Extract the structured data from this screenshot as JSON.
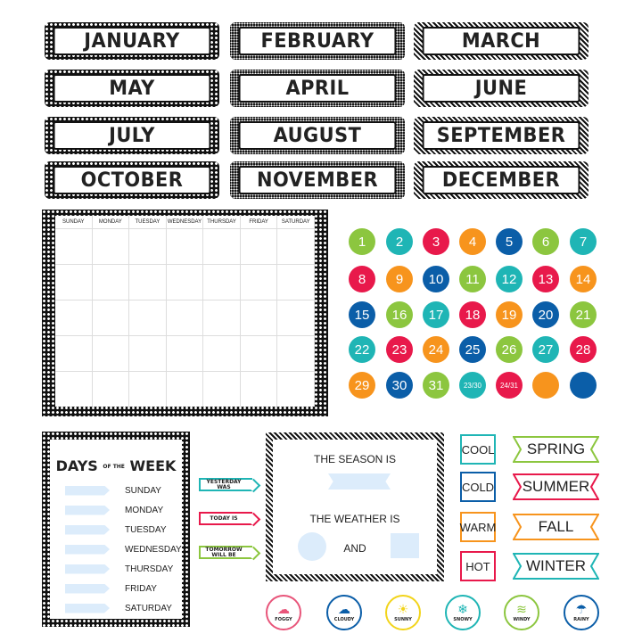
{
  "months": [
    "JANUARY",
    "FEBRUARY",
    "MARCH",
    "MAY",
    "APRIL",
    "JUNE",
    "JULY",
    "AUGUST",
    "SEPTEMBER",
    "OCTOBER",
    "NOVEMBER",
    "DECEMBER"
  ],
  "calendar": {
    "headers": [
      "SUNDAY",
      "MONDAY",
      "TUESDAY",
      "WEDNESDAY",
      "THURSDAY",
      "FRIDAY",
      "SATURDAY"
    ]
  },
  "colors": {
    "green": "#8cc63f",
    "teal": "#1fb5b5",
    "red": "#e8194b",
    "orange": "#f7941d",
    "blue": "#0b5ea8"
  },
  "numbers": [
    {
      "label": "1",
      "color": "green"
    },
    {
      "label": "2",
      "color": "teal"
    },
    {
      "label": "3",
      "color": "red"
    },
    {
      "label": "4",
      "color": "orange"
    },
    {
      "label": "5",
      "color": "blue"
    },
    {
      "label": "6",
      "color": "green"
    },
    {
      "label": "7",
      "color": "teal"
    },
    {
      "label": "8",
      "color": "red"
    },
    {
      "label": "9",
      "color": "orange"
    },
    {
      "label": "10",
      "color": "blue"
    },
    {
      "label": "11",
      "color": "green"
    },
    {
      "label": "12",
      "color": "teal"
    },
    {
      "label": "13",
      "color": "red"
    },
    {
      "label": "14",
      "color": "orange"
    },
    {
      "label": "15",
      "color": "blue"
    },
    {
      "label": "16",
      "color": "green"
    },
    {
      "label": "17",
      "color": "teal"
    },
    {
      "label": "18",
      "color": "red"
    },
    {
      "label": "19",
      "color": "orange"
    },
    {
      "label": "20",
      "color": "blue"
    },
    {
      "label": "21",
      "color": "green"
    },
    {
      "label": "22",
      "color": "teal"
    },
    {
      "label": "23",
      "color": "red"
    },
    {
      "label": "24",
      "color": "orange"
    },
    {
      "label": "25",
      "color": "blue"
    },
    {
      "label": "26",
      "color": "green"
    },
    {
      "label": "27",
      "color": "teal"
    },
    {
      "label": "28",
      "color": "red"
    },
    {
      "label": "29",
      "color": "orange"
    },
    {
      "label": "30",
      "color": "blue"
    },
    {
      "label": "31",
      "color": "green"
    },
    {
      "label": "23/30",
      "color": "teal"
    },
    {
      "label": "24/31",
      "color": "red"
    },
    {
      "label": "",
      "color": "orange"
    },
    {
      "label": "",
      "color": "blue"
    }
  ],
  "days_of_week": {
    "title_a": "DAYS",
    "title_of": "OF THE",
    "title_b": "WEEK",
    "days": [
      "SUNDAY",
      "MONDAY",
      "TUESDAY",
      "WEDNESDAY",
      "THURSDAY",
      "FRIDAY",
      "SATURDAY"
    ]
  },
  "arrows": [
    {
      "label": "YESTERDAY WAS",
      "color": "teal"
    },
    {
      "label": "TODAY IS",
      "color": "red"
    },
    {
      "label": "TOMORROW WILL BE",
      "color": "green"
    }
  ],
  "season_board": {
    "season_label": "THE SEASON IS",
    "weather_label": "THE WEATHER IS",
    "and_label": "AND"
  },
  "temperatures": [
    {
      "label": "COOL",
      "color": "teal"
    },
    {
      "label": "COLD",
      "color": "blue"
    },
    {
      "label": "WARM",
      "color": "orange"
    },
    {
      "label": "HOT",
      "color": "red"
    }
  ],
  "seasons": [
    {
      "label": "SPRING",
      "color": "green"
    },
    {
      "label": "SUMMER",
      "color": "red"
    },
    {
      "label": "FALL",
      "color": "orange"
    },
    {
      "label": "WINTER",
      "color": "teal"
    }
  ],
  "weather": [
    {
      "label": "FOGGY",
      "icon": "fog-icon",
      "glyph": "☁",
      "color": "#e8557a"
    },
    {
      "label": "CLOUDY",
      "icon": "cloud-icon",
      "glyph": "☁",
      "color": "#0b5ea8"
    },
    {
      "label": "SUNNY",
      "icon": "sun-icon",
      "glyph": "☀",
      "color": "#f2d41b"
    },
    {
      "label": "SNOWY",
      "icon": "snowflake-icon",
      "glyph": "❄",
      "color": "#1fb5b5"
    },
    {
      "label": "WINDY",
      "icon": "wind-icon",
      "glyph": "≋",
      "color": "#8cc63f"
    },
    {
      "label": "RAINY",
      "icon": "rain-cloud-icon",
      "glyph": "☂",
      "color": "#0b5ea8"
    }
  ]
}
